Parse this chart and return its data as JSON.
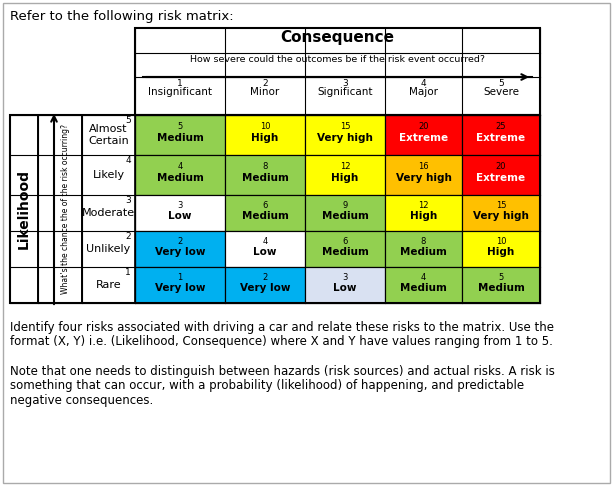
{
  "title_text": "Refer to the following risk matrix:",
  "consequence_label": "Consequence",
  "consequence_sublabel": "How severe could the outcomes be if the risk event occurred?",
  "likelihood_label": "Likelihood",
  "likelihood_sublabel": "What’s the chance the of the risk occurring?",
  "col_headers": [
    {
      "num": "1",
      "label": "Insignificant"
    },
    {
      "num": "2",
      "label": "Minor"
    },
    {
      "num": "3",
      "label": "Significant"
    },
    {
      "num": "4",
      "label": "Major"
    },
    {
      "num": "5",
      "label": "Severe"
    }
  ],
  "row_headers": [
    {
      "num": "5",
      "label": "Almost\nCertain"
    },
    {
      "num": "4",
      "label": "Likely"
    },
    {
      "num": "3",
      "label": "Moderate"
    },
    {
      "num": "2",
      "label": "Unlikely"
    },
    {
      "num": "1",
      "label": "Rare"
    }
  ],
  "cells": [
    [
      {
        "val": "5",
        "text": "Medium",
        "color": "#92D050",
        "text_color": "black"
      },
      {
        "val": "10",
        "text": "High",
        "color": "#FFFF00",
        "text_color": "black"
      },
      {
        "val": "15",
        "text": "Very high",
        "color": "#FFFF00",
        "text_color": "black"
      },
      {
        "val": "20",
        "text": "Extreme",
        "color": "#FF0000",
        "text_color": "white"
      },
      {
        "val": "25",
        "text": "Extreme",
        "color": "#FF0000",
        "text_color": "white"
      }
    ],
    [
      {
        "val": "4",
        "text": "Medium",
        "color": "#92D050",
        "text_color": "black"
      },
      {
        "val": "8",
        "text": "Medium",
        "color": "#92D050",
        "text_color": "black"
      },
      {
        "val": "12",
        "text": "High",
        "color": "#FFFF00",
        "text_color": "black"
      },
      {
        "val": "16",
        "text": "Very high",
        "color": "#FFC000",
        "text_color": "black"
      },
      {
        "val": "20",
        "text": "Extreme",
        "color": "#FF0000",
        "text_color": "white"
      }
    ],
    [
      {
        "val": "3",
        "text": "Low",
        "color": "#FFFFFF",
        "text_color": "black"
      },
      {
        "val": "6",
        "text": "Medium",
        "color": "#92D050",
        "text_color": "black"
      },
      {
        "val": "9",
        "text": "Medium",
        "color": "#92D050",
        "text_color": "black"
      },
      {
        "val": "12",
        "text": "High",
        "color": "#FFFF00",
        "text_color": "black"
      },
      {
        "val": "15",
        "text": "Very high",
        "color": "#FFC000",
        "text_color": "black"
      }
    ],
    [
      {
        "val": "2",
        "text": "Very low",
        "color": "#00B0F0",
        "text_color": "black"
      },
      {
        "val": "4",
        "text": "Low",
        "color": "#FFFFFF",
        "text_color": "black"
      },
      {
        "val": "6",
        "text": "Medium",
        "color": "#92D050",
        "text_color": "black"
      },
      {
        "val": "8",
        "text": "Medium",
        "color": "#92D050",
        "text_color": "black"
      },
      {
        "val": "10",
        "text": "High",
        "color": "#FFFF00",
        "text_color": "black"
      }
    ],
    [
      {
        "val": "1",
        "text": "Very low",
        "color": "#00B0F0",
        "text_color": "black"
      },
      {
        "val": "2",
        "text": "Very low",
        "color": "#00B0F0",
        "text_color": "black"
      },
      {
        "val": "3",
        "text": "Low",
        "color": "#D9E1F2",
        "text_color": "black"
      },
      {
        "val": "4",
        "text": "Medium",
        "color": "#92D050",
        "text_color": "black"
      },
      {
        "val": "5",
        "text": "Medium",
        "color": "#92D050",
        "text_color": "black"
      }
    ]
  ],
  "body_texts": [
    "Identify four risks associated with driving a car and relate these risks to the matrix. Use the",
    "format (X, Y) i.e. (Likelihood, Consequence) where X and Y have values ranging from 1 to 5.",
    "",
    "Note that one needs to distinguish between hazards (risk sources) and actual risks. A risk is",
    "something that can occur, with a probability (likelihood) of happening, and predictable",
    "negative consequences."
  ],
  "fig_bg": "#FFFFFF"
}
